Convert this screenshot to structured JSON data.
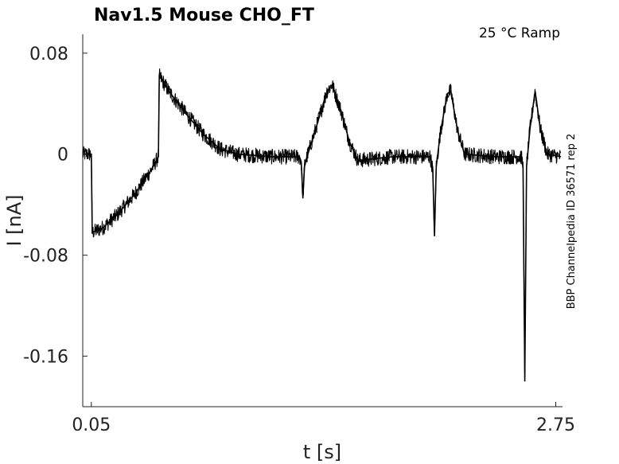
{
  "chart_data": {
    "type": "line",
    "title": "Nav1.5  Mouse  CHO_FT",
    "condition_label": "25 °C  Ramp",
    "side_label": "BBP Channelpedia ID 36571 rep 2",
    "xlabel": "t [s]",
    "ylabel": "I [nA]",
    "xlim": [
      0.0,
      2.78
    ],
    "ylim": [
      -0.2,
      0.095
    ],
    "x_ticks": [
      {
        "value": 0.05,
        "label": "0.05"
      },
      {
        "value": 2.75,
        "label": "2.75"
      }
    ],
    "y_ticks": [
      {
        "value": 0.08,
        "label": "0.08"
      },
      {
        "value": 0,
        "label": "0"
      },
      {
        "value": -0.08,
        "label": "-0.08"
      },
      {
        "value": -0.16,
        "label": "-0.16"
      }
    ],
    "grid": false,
    "series": [
      {
        "color": "#000000",
        "noise": 0.006,
        "points": [
          [
            0.0,
            0.0
          ],
          [
            0.04,
            0.0
          ],
          [
            0.05,
            0.0
          ],
          [
            0.055,
            -0.062
          ],
          [
            0.12,
            -0.058
          ],
          [
            0.2,
            -0.048
          ],
          [
            0.3,
            -0.032
          ],
          [
            0.4,
            -0.012
          ],
          [
            0.44,
            -0.002
          ],
          [
            0.445,
            0.062
          ],
          [
            0.5,
            0.05
          ],
          [
            0.6,
            0.032
          ],
          [
            0.7,
            0.016
          ],
          [
            0.8,
            0.004
          ],
          [
            0.9,
            0.0
          ],
          [
            1.1,
            -0.002
          ],
          [
            1.26,
            -0.002
          ],
          [
            1.27,
            -0.006
          ],
          [
            1.28,
            -0.035
          ],
          [
            1.29,
            -0.008
          ],
          [
            1.35,
            0.018
          ],
          [
            1.42,
            0.05
          ],
          [
            1.45,
            0.055
          ],
          [
            1.5,
            0.035
          ],
          [
            1.55,
            0.01
          ],
          [
            1.6,
            -0.005
          ],
          [
            1.8,
            -0.002
          ],
          [
            2.02,
            -0.002
          ],
          [
            2.035,
            -0.012
          ],
          [
            2.045,
            -0.065
          ],
          [
            2.055,
            -0.01
          ],
          [
            2.08,
            0.018
          ],
          [
            2.12,
            0.048
          ],
          [
            2.14,
            0.05
          ],
          [
            2.18,
            0.018
          ],
          [
            2.22,
            0.0
          ],
          [
            2.4,
            -0.002
          ],
          [
            2.55,
            -0.002
          ],
          [
            2.56,
            -0.01
          ],
          [
            2.57,
            -0.18
          ],
          [
            2.58,
            -0.01
          ],
          [
            2.6,
            0.02
          ],
          [
            2.63,
            0.05
          ],
          [
            2.66,
            0.02
          ],
          [
            2.7,
            0.0
          ],
          [
            2.78,
            -0.002
          ]
        ]
      }
    ]
  }
}
